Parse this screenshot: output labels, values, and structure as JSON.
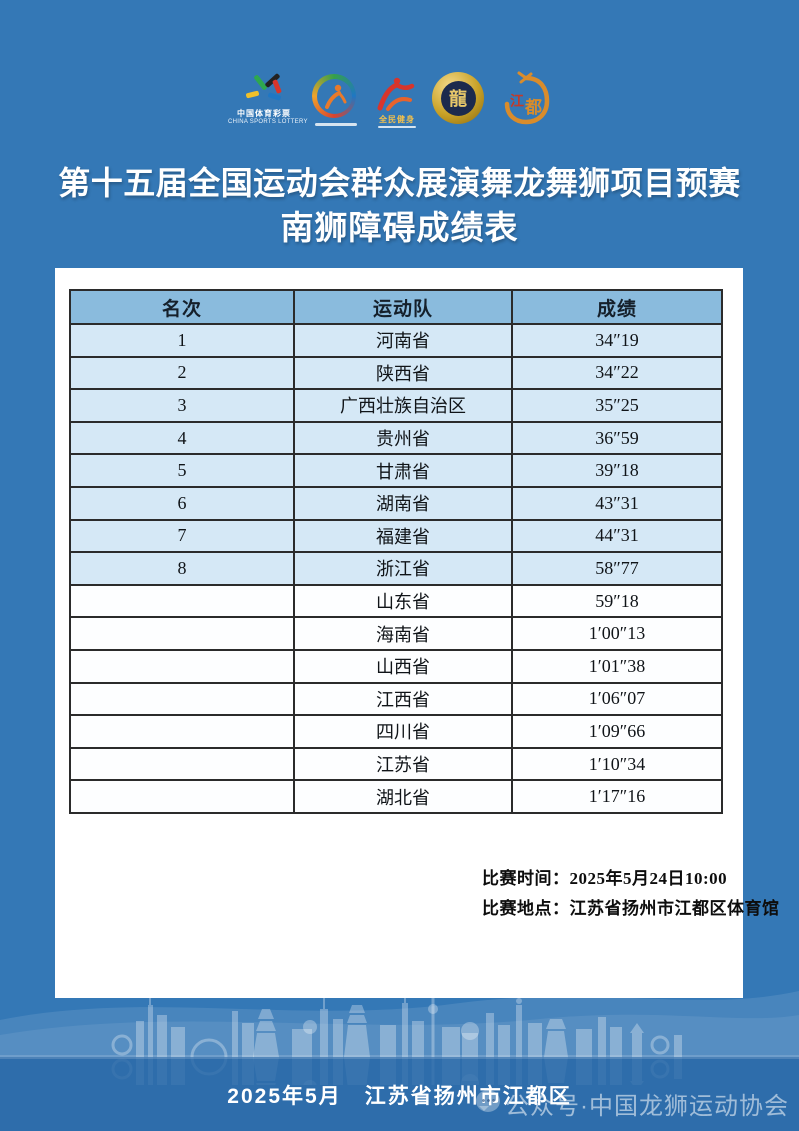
{
  "poster": {
    "title_line1": "第十五届全国运动会群众展演舞龙舞狮项目预赛",
    "title_line2": "南狮障碍成绩表"
  },
  "logos": {
    "lottery": {
      "name_cn": "中国体育彩票",
      "name_en": "CHINA SPORTS LOTTERY"
    },
    "fitness": {
      "label": "全民健身"
    },
    "dragon_association_medal": {
      "glyph": "龍"
    },
    "jiangdu": {
      "char1": "江",
      "char2": "都"
    }
  },
  "table": {
    "headers": [
      "名次",
      "运动队",
      "成绩"
    ],
    "rows": [
      [
        "1",
        "河南省",
        "34″19"
      ],
      [
        "2",
        "陕西省",
        "34″22"
      ],
      [
        "3",
        "广西壮族自治区",
        "35″25"
      ],
      [
        "4",
        "贵州省",
        "36″59"
      ],
      [
        "5",
        "甘肃省",
        "39″18"
      ],
      [
        "6",
        "湖南省",
        "43″31"
      ],
      [
        "7",
        "福建省",
        "44″31"
      ],
      [
        "8",
        "浙江省",
        "58″77"
      ],
      [
        "",
        "山东省",
        "59″18"
      ],
      [
        "",
        "海南省",
        "1′00″13"
      ],
      [
        "",
        "山西省",
        "1′01″38"
      ],
      [
        "",
        "江西省",
        "1′06″07"
      ],
      [
        "",
        "四川省",
        "1′09″66"
      ],
      [
        "",
        "江苏省",
        "1′10″34"
      ],
      [
        "",
        "湖北省",
        "1′17″16"
      ]
    ]
  },
  "meta": {
    "time_line": "比赛时间：2025年5月24日10:00",
    "venue_line": "比赛地点：江苏省扬州市江都区体育馆"
  },
  "footer": {
    "date_location": "2025年5月　江苏省扬州市江都区",
    "watermark": "公众号·中国龙狮运动协会"
  },
  "colors": {
    "background": "#3478b6",
    "footer_band": "#2e6dab",
    "table_header_bg": "#8abbdd",
    "row_highlight_bg": "#d5e8f6",
    "border": "#2b2b2b",
    "gold": "#c9a227"
  }
}
